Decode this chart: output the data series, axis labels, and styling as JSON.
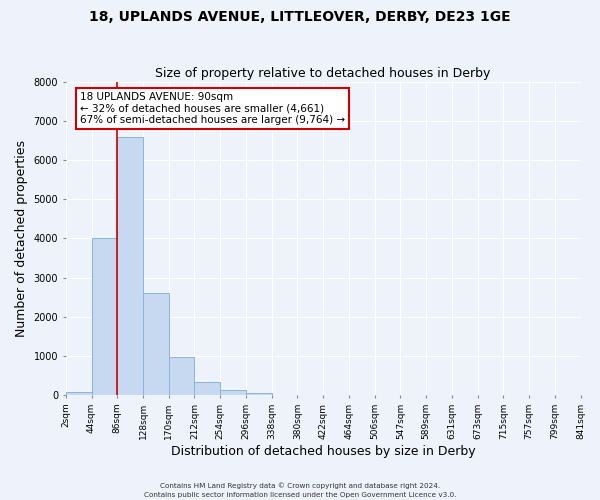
{
  "title": "18, UPLANDS AVENUE, LITTLEOVER, DERBY, DE23 1GE",
  "subtitle": "Size of property relative to detached houses in Derby",
  "xlabel": "Distribution of detached houses by size in Derby",
  "ylabel": "Number of detached properties",
  "bin_labels": [
    "2sqm",
    "44sqm",
    "86sqm",
    "128sqm",
    "170sqm",
    "212sqm",
    "254sqm",
    "296sqm",
    "338sqm",
    "380sqm",
    "422sqm",
    "464sqm",
    "506sqm",
    "547sqm",
    "589sqm",
    "631sqm",
    "673sqm",
    "715sqm",
    "757sqm",
    "799sqm",
    "841sqm"
  ],
  "bar_heights": [
    70,
    4000,
    6600,
    2600,
    960,
    330,
    130,
    50,
    0,
    0,
    0,
    0,
    0,
    0,
    0,
    0,
    0,
    0,
    0,
    0
  ],
  "bar_color": "#c6d9f0",
  "bar_edge_color": "#8ab4d8",
  "vline_color": "#cc0000",
  "vline_x": 2.0,
  "ylim": [
    0,
    8000
  ],
  "yticks": [
    0,
    1000,
    2000,
    3000,
    4000,
    5000,
    6000,
    7000,
    8000
  ],
  "annotation_title": "18 UPLANDS AVENUE: 90sqm",
  "annotation_line1": "← 32% of detached houses are smaller (4,661)",
  "annotation_line2": "67% of semi-detached houses are larger (9,764) →",
  "annotation_box_color": "#ffffff",
  "annotation_box_edge": "#cc0000",
  "footer1": "Contains HM Land Registry data © Crown copyright and database right 2024.",
  "footer2": "Contains public sector information licensed under the Open Government Licence v3.0.",
  "bg_color": "#eef2fa",
  "grid_color": "#ffffff",
  "title_fontsize": 10,
  "subtitle_fontsize": 9,
  "tick_fontsize": 6.5,
  "axis_label_fontsize": 9
}
